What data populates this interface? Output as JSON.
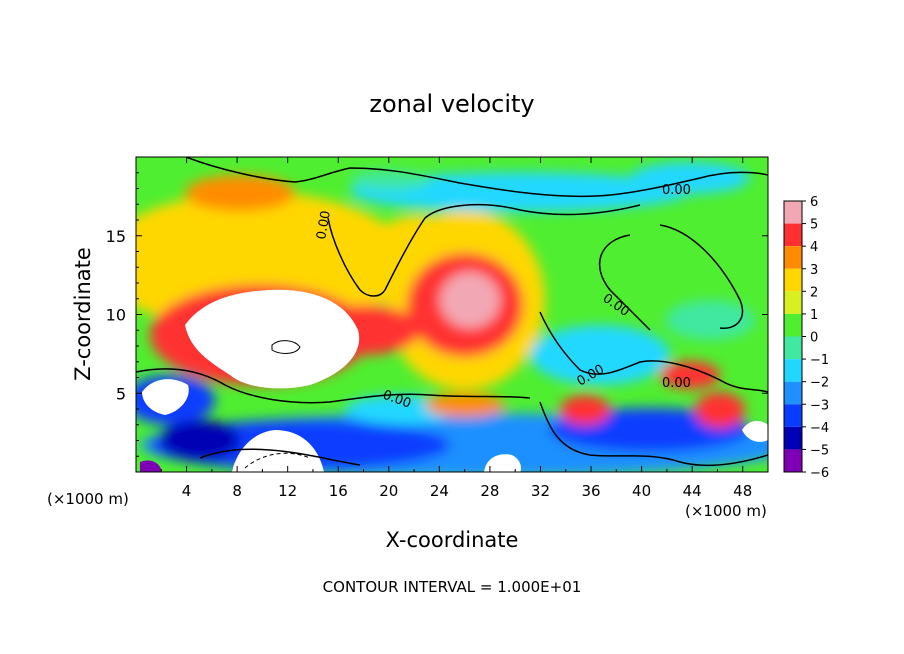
{
  "chart_data": {
    "type": "heatmap",
    "title": "zonal velocity",
    "xlabel": "X-coordinate",
    "ylabel": "Z-coordinate",
    "x_unit_label_left": "(×1000 m)",
    "x_unit_label_right": "(×1000 m)",
    "xlim": [
      0,
      50
    ],
    "ylim": [
      0,
      20
    ],
    "x_ticks": [
      "4",
      "8",
      "12",
      "16",
      "20",
      "24",
      "28",
      "32",
      "36",
      "40",
      "44",
      "48"
    ],
    "y_ticks": [
      "5",
      "10",
      "15"
    ],
    "colorbar": {
      "range": [
        -6,
        6
      ],
      "tick_labels": [
        "6",
        "5",
        "4",
        "3",
        "2",
        "1",
        "0",
        "−1",
        "−2",
        "−3",
        "−4",
        "−5",
        "−6"
      ],
      "colors": [
        "#f2a8b4",
        "#ff3030",
        "#ff8c00",
        "#ffd700",
        "#d8f020",
        "#50ee30",
        "#40e8a0",
        "#20d8ff",
        "#1e90ff",
        "#0a3cff",
        "#0000b4",
        "#7e00b4"
      ]
    },
    "contour_labels": [
      "0.00",
      "0.00",
      "0.00",
      "0.00",
      "0.00"
    ],
    "footer": "CONTOUR INTERVAL = 1.000E+01"
  }
}
